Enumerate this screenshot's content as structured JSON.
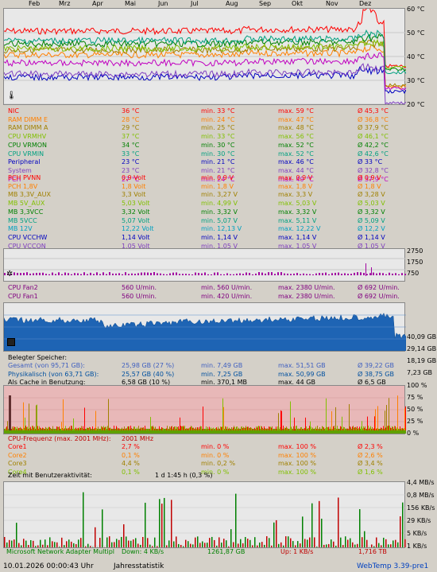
{
  "months": [
    "Feb",
    "Mrz",
    "Apr",
    "Mai",
    "Jun",
    "Jul",
    "Aug",
    "Sep",
    "Okt",
    "Nov",
    "Dez"
  ],
  "temp_axis": [
    "60 °C",
    "50 °C",
    "40 °C",
    "30 °C",
    "20 °C"
  ],
  "temps": [
    {
      "name": "NIC",
      "cur": "36 °C",
      "min": "min. 33 °C",
      "max": "max. 59 °C",
      "avg": "Ø 45,3 °C",
      "color": "#ff0000"
    },
    {
      "name": "RAM DIMM E",
      "cur": "28 °C",
      "min": "min. 24 °C",
      "max": "max. 47 °C",
      "avg": "Ø 36,8 °C",
      "color": "#ff8000"
    },
    {
      "name": "RAM DIMM A",
      "cur": "29 °C",
      "min": "min. 25 °C",
      "max": "max. 48 °C",
      "avg": "Ø 37,9 °C",
      "color": "#a08000"
    },
    {
      "name": "CPU VRMHV",
      "cur": "37 °C",
      "min": "min. 33 °C",
      "max": "max. 56 °C",
      "avg": "Ø 46,1 °C",
      "color": "#80c000"
    },
    {
      "name": "CPU VRMON",
      "cur": "34 °C",
      "min": "min. 30 °C",
      "max": "max. 52 °C",
      "avg": "Ø 42,2 °C",
      "color": "#008000"
    },
    {
      "name": "CPU VRMIN",
      "cur": "33 °C",
      "min": "min. 30 °C",
      "max": "max. 52 °C",
      "avg": "Ø 42,6 °C",
      "color": "#00a080"
    },
    {
      "name": "Peripheral",
      "cur": "23 °C",
      "min": "min. 21 °C",
      "max": "max. 46 °C",
      "avg": "Ø 33 °C",
      "color": "#0000c0"
    },
    {
      "name": "System",
      "cur": "23 °C",
      "min": "min. 21 °C",
      "max": "max. 44 °C",
      "avg": "Ø 32,8 °C",
      "color": "#8040c0"
    },
    {
      "name": "PCH",
      "cur": "27 °C",
      "min": "min. 24 °C",
      "max": "max. 49 °C",
      "avg": "Ø 37,9 °C",
      "color": "#c000c0"
    }
  ],
  "volts": [
    {
      "name": "PCH PVNN",
      "cur": "0,9 Volt",
      "min": "min. 0,9 V",
      "max": "max. 0,9 V",
      "avg": "Ø 0,9 V",
      "color": "#ff0000"
    },
    {
      "name": "PCH 1,8V",
      "cur": "1,8 Volt",
      "min": "min. 1,8 V",
      "max": "max. 1,8 V",
      "avg": "Ø 1,8 V",
      "color": "#ff8000"
    },
    {
      "name": "MB 3,3V_AUX",
      "cur": "3,3 Volt",
      "min": "min. 3,27 V",
      "max": "max. 3,3 V",
      "avg": "Ø 3,28 V",
      "color": "#a08000"
    },
    {
      "name": "MB 5V_AUX",
      "cur": "5,03 Volt",
      "min": "min. 4,99 V",
      "max": "max. 5,03 V",
      "avg": "Ø 5,03 V",
      "color": "#80c000"
    },
    {
      "name": "MB 3,3VCC",
      "cur": "3,32 Volt",
      "min": "min. 3,32 V",
      "max": "max. 3,32 V",
      "avg": "Ø 3,32 V",
      "color": "#008000"
    },
    {
      "name": "MB 5VCC",
      "cur": "5,07 Volt",
      "min": "min. 5,07 V",
      "max": "max. 5,11 V",
      "avg": "Ø 5,09 V",
      "color": "#00a080"
    },
    {
      "name": "MB 12V",
      "cur": "12,22 Volt",
      "min": "min. 12,13 V",
      "max": "max. 12,22 V",
      "avg": "Ø 12,2 V",
      "color": "#00a0c0"
    },
    {
      "name": "CPU VCCHW",
      "cur": "1,14 Volt",
      "min": "min. 1,14 V",
      "max": "max. 1,14 V",
      "avg": "Ø 1,14 V",
      "color": "#0000c0"
    },
    {
      "name": "CPU VCCON",
      "cur": "1,05 Volt",
      "min": "min. 1,05 V",
      "max": "max. 1,05 V",
      "avg": "Ø 1,05 V",
      "color": "#8040c0"
    },
    {
      "name": "CPU VCCIN",
      "cur": "1,79 Volt",
      "min": "min. 1,61 V",
      "max": "max. 1,8 V",
      "avg": "Ø 1,78 V",
      "color": "#c000c0"
    }
  ],
  "fan_axis": [
    "2750",
    "1750",
    "750"
  ],
  "fans": [
    {
      "name": "CPU Fan2",
      "cur": "560 U/min.",
      "min": "min. 560 U/min.",
      "max": "max. 2380 U/min.",
      "avg": "Ø 692 U/min.",
      "color": "#800080"
    },
    {
      "name": "CPU Fan1",
      "cur": "560 U/min.",
      "min": "min. 420 U/min.",
      "max": "max. 2380 U/min.",
      "avg": "Ø 692 U/min.",
      "color": "#800080"
    }
  ],
  "mem_axis": [
    "40,09 GB",
    "29,14 GB",
    "18,19 GB",
    "7,23 GB"
  ],
  "mem_title": "Belegter Speicher:",
  "mem": [
    {
      "name": "Gesamt (von 95,71 GB):",
      "cur": "25,98 GB (27 %)",
      "min": "min. 7,49 GB",
      "max": "max. 51,51 GB",
      "avg": "Ø 39,22 GB",
      "color": "#4060c0"
    },
    {
      "name": "Physikalisch (von 63,71 GB):",
      "cur": "25,57 GB (40 %)",
      "min": "min. 7,25 GB",
      "max": "max. 50,99 GB",
      "avg": "Ø 38,75 GB",
      "color": "#0050a0"
    },
    {
      "name": "Als Cache in Benutzung:",
      "cur": "6,58 GB (10 %)",
      "min": "min. 370,1 MB",
      "max": "max. 44 GB",
      "avg": "Ø 6,5 GB",
      "color": "#000000"
    }
  ],
  "cpu_axis": [
    "100 %",
    "75 %",
    "50 %",
    "25 %",
    "0 %"
  ],
  "cpu_title": "CPU-Frequenz (max. 2001 MHz):",
  "cpu_freq": "2001 MHz",
  "cores": [
    {
      "name": "Core1",
      "cur": "2,7 %",
      "min": "min. 0 %",
      "max": "max. 100 %",
      "avg": "Ø 2,3 %",
      "color": "#ff0000"
    },
    {
      "name": "Core2",
      "cur": "0,1 %",
      "min": "min. 0 %",
      "max": "max. 100 %",
      "avg": "Ø 2,6 %",
      "color": "#ff8000"
    },
    {
      "name": "Core3",
      "cur": "4,4 %",
      "min": "min. 0,2 %",
      "max": "max. 100 %",
      "avg": "Ø 3,4 %",
      "color": "#a08000"
    },
    {
      "name": "Core4",
      "cur": "0,1 %",
      "min": "min. 0 %",
      "max": "max. 100 %",
      "avg": "Ø 1,6 %",
      "color": "#80c000"
    }
  ],
  "user_activity_label": "Zeit mit Benutzeraktivität:",
  "user_activity_value": "1 d 1:45 h (0,3 %)",
  "net_axis": [
    "4,4 MB/s",
    "0,8 MB/s",
    "156 KB/s",
    "29 KB/s",
    "5 KB/s",
    "1 KB/s"
  ],
  "net": {
    "name": "Microsoft Network Adapter Multipl",
    "down": "Down: 4 KB/s",
    "total_down": "1261,87 GB",
    "up": "Up: 1 KB/s",
    "total_up": "1,716 TB"
  },
  "footer": {
    "timestamp": "10.01.2026 00:00:43 Uhr",
    "stat": "Jahresstatistik",
    "version": "WebTemp 3.39-pre1"
  }
}
